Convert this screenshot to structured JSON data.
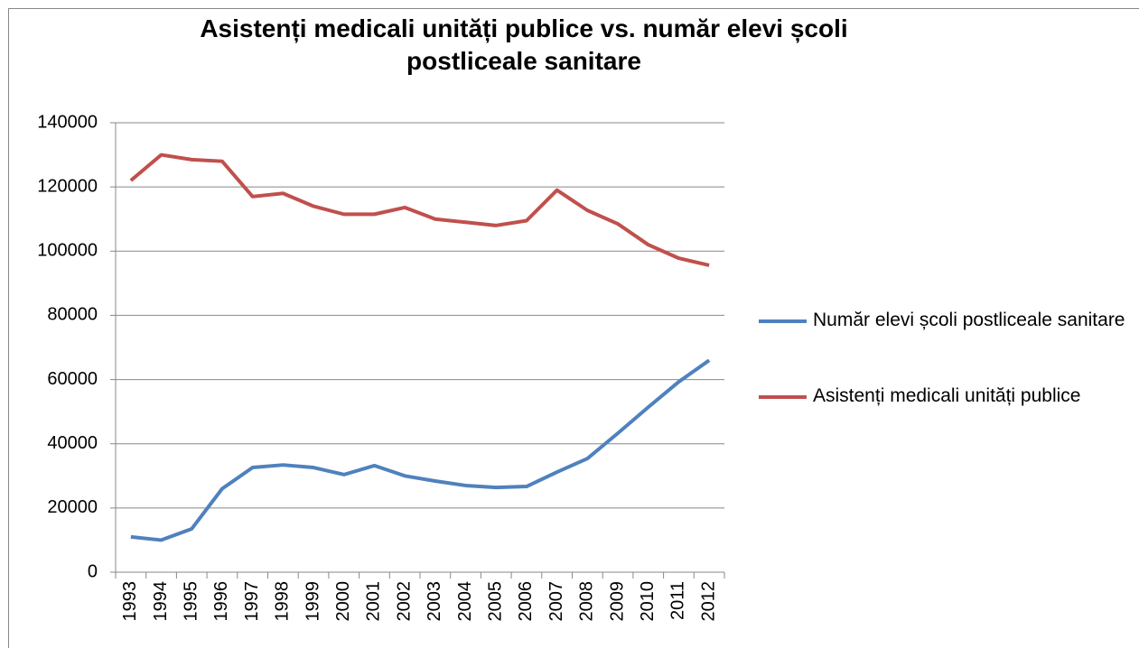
{
  "chart_data": {
    "type": "line",
    "title": "Asistenți medicali unități publice vs. număr elevi școli postliceale sanitare",
    "categories": [
      "1993",
      "1994",
      "1995",
      "1996",
      "1997",
      "1998",
      "1999",
      "2000",
      "2001",
      "2002",
      "2003",
      "2004",
      "2005",
      "2006",
      "2007",
      "2008",
      "2009",
      "2010",
      "2011",
      "2012"
    ],
    "series": [
      {
        "name": "Număr elevi școli postliceale sanitare",
        "color": "#4f81bd",
        "values": [
          11000,
          10000,
          13500,
          26000,
          32600,
          33400,
          32600,
          30400,
          33200,
          30000,
          28400,
          27000,
          26400,
          26700,
          31200,
          35400,
          43300,
          51400,
          59300,
          66000
        ]
      },
      {
        "name": "Asistenți medicali unități publice",
        "color": "#c0504d",
        "values": [
          122000,
          130000,
          128500,
          128000,
          117000,
          118000,
          114000,
          111500,
          111500,
          113600,
          110000,
          109000,
          108000,
          109500,
          119000,
          112700,
          108500,
          102000,
          97800,
          95600
        ]
      }
    ],
    "ylim": [
      0,
      140000
    ],
    "yticks": [
      0,
      20000,
      40000,
      60000,
      80000,
      100000,
      120000,
      140000
    ],
    "grid": true,
    "legend": "right"
  }
}
